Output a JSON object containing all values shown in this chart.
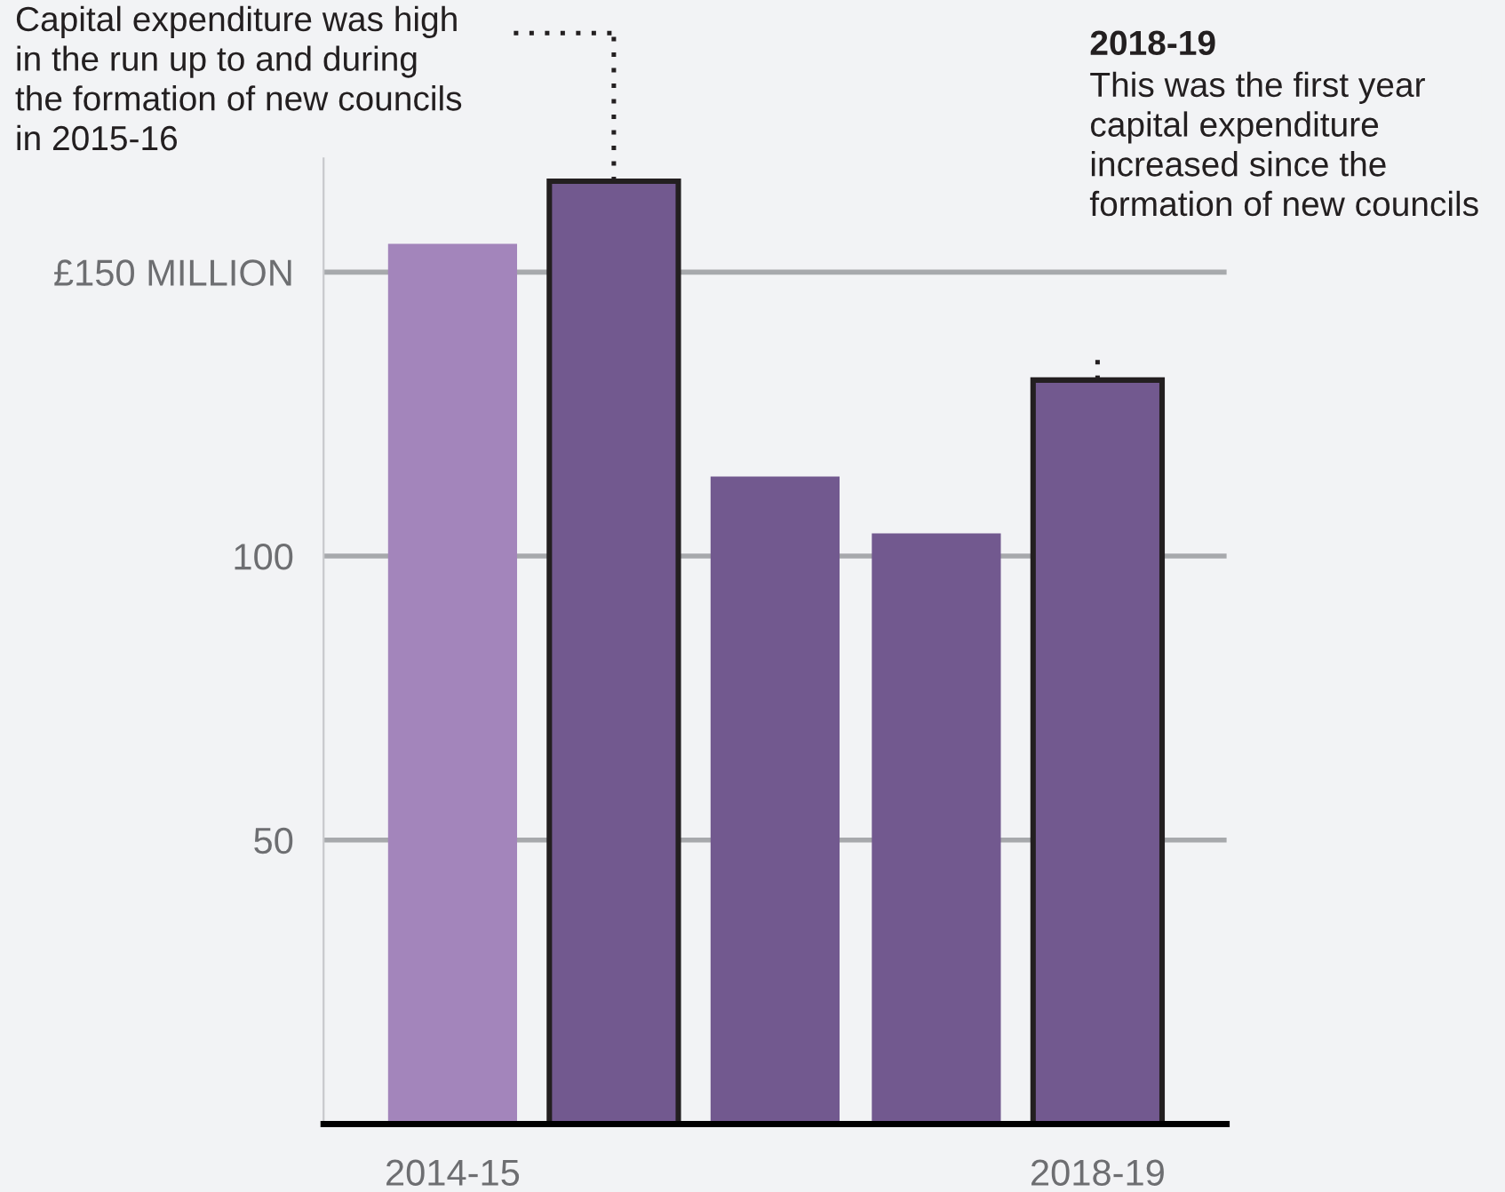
{
  "chart_data": {
    "type": "bar",
    "categories": [
      "2014-15",
      null,
      null,
      null,
      "2018-19"
    ],
    "values": [
      155,
      166,
      114,
      104,
      131
    ],
    "colors": [
      "#a385bb",
      "#72598f",
      "#72598f",
      "#72598f",
      "#72598f"
    ],
    "ylim": [
      0,
      170
    ],
    "yticks": [
      50,
      100,
      {
        "value": 150,
        "label": "£150 MILLION"
      }
    ],
    "grid": "y",
    "annotations": [
      "Capital expenditure was high\nin the run up to and during\nthe formation of new councils\nin 2015-16",
      "2018-19\nThis was the first year\ncapital expenditure\nincreased since the\nformation of new councils"
    ]
  }
}
